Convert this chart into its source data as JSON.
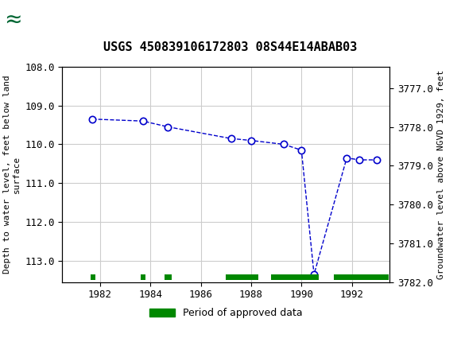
{
  "title": "USGS 450839106172803 08S44E14ABAB03",
  "ylabel_left": "Depth to water level, feet below land\nsurface",
  "ylabel_right": "Groundwater level above NGVD 1929, feet",
  "xlim": [
    1980.5,
    1993.5
  ],
  "ylim_left": [
    108.0,
    113.55
  ],
  "ylim_right": [
    3776.45,
    3782.0
  ],
  "yticks_left": [
    108.0,
    109.0,
    110.0,
    111.0,
    112.0,
    113.0
  ],
  "yticks_right": [
    3782.0,
    3781.0,
    3780.0,
    3779.0,
    3778.0,
    3777.0
  ],
  "xticks": [
    1982,
    1984,
    1986,
    1988,
    1990,
    1992
  ],
  "data_x": [
    1981.7,
    1983.7,
    1984.7,
    1987.2,
    1988.0,
    1989.3,
    1990.0,
    1990.5,
    1991.8,
    1992.3,
    1993.0
  ],
  "data_y": [
    109.35,
    109.4,
    109.55,
    109.85,
    109.9,
    110.0,
    110.15,
    113.35,
    110.35,
    110.4,
    110.4
  ],
  "line_color": "#0000cc",
  "marker_color": "#0000cc",
  "background_color": "#ffffff",
  "header_color": "#006633",
  "grid_color": "#cccccc",
  "approved_bars": [
    {
      "x_start": 1981.62,
      "x_end": 1981.82
    },
    {
      "x_start": 1983.62,
      "x_end": 1983.82
    },
    {
      "x_start": 1984.55,
      "x_end": 1984.85
    },
    {
      "x_start": 1987.0,
      "x_end": 1988.3
    },
    {
      "x_start": 1988.8,
      "x_end": 1990.7
    },
    {
      "x_start": 1991.3,
      "x_end": 1993.45
    }
  ],
  "approved_bar_color": "#008800",
  "approved_bar_y": 113.42,
  "approved_bar_height": 0.15,
  "legend_label": "Period of approved data"
}
